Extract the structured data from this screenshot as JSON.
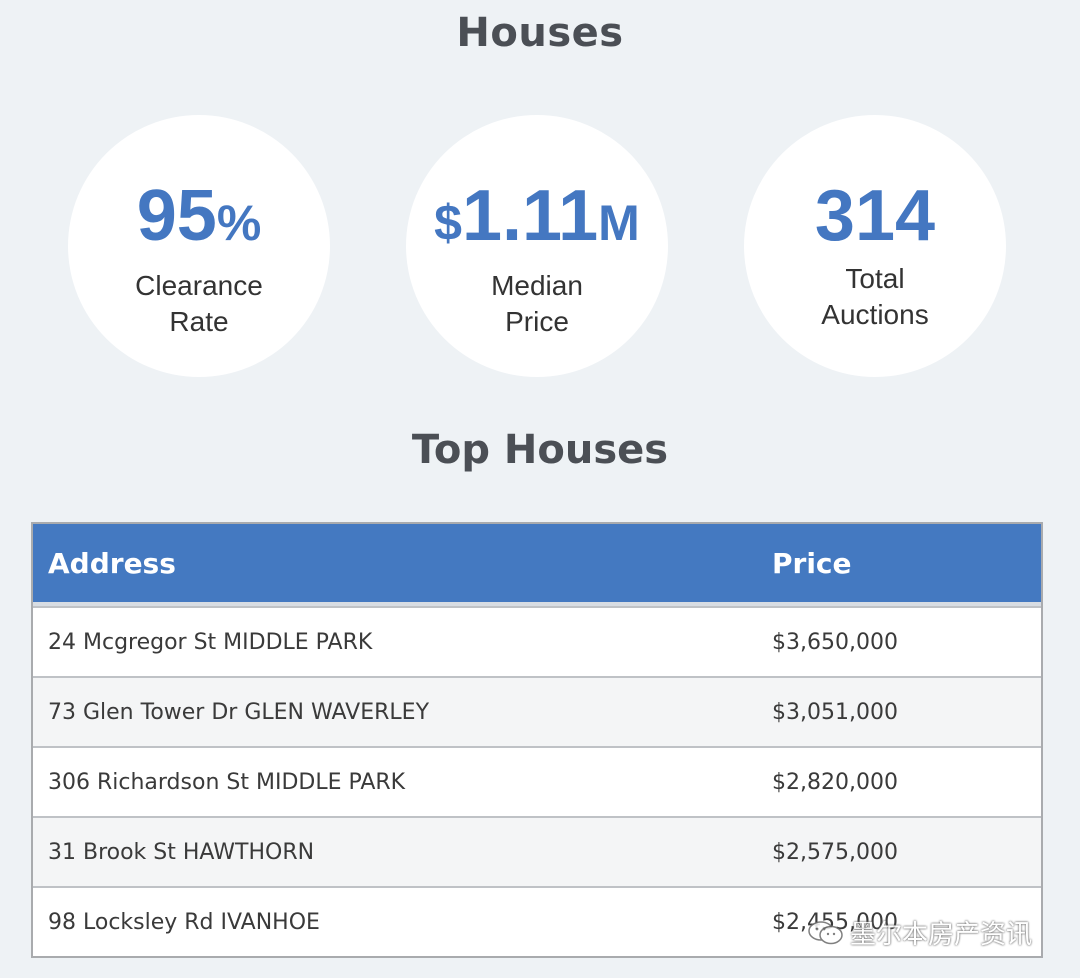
{
  "page": {
    "title": "Houses"
  },
  "stats": [
    {
      "value": "95",
      "unit": "%",
      "label_line1": "Clearance",
      "label_line2": "Rate"
    },
    {
      "value_prefix": "$",
      "value": "1.11",
      "unit": "M",
      "label_line1": "Median",
      "label_line2": "Price"
    },
    {
      "value": "314",
      "label_line1": "Total",
      "label_line2": "Auctions"
    }
  ],
  "top_houses": {
    "title": "Top Houses",
    "columns": {
      "address": "Address",
      "price": "Price"
    },
    "rows": [
      {
        "address": "24 Mcgregor St MIDDLE PARK",
        "price": "$3,650,000"
      },
      {
        "address": "73 Glen Tower Dr GLEN WAVERLEY",
        "price": "$3,051,000"
      },
      {
        "address": "306 Richardson St MIDDLE PARK",
        "price": "$2,820,000"
      },
      {
        "address": "31 Brook St HAWTHORN",
        "price": "$2,575,000"
      },
      {
        "address": "98 Locksley Rd IVANHOE",
        "price": "$2,455,000"
      }
    ]
  },
  "watermark": {
    "icon": "wechat-icon",
    "text": "墨尔本房产资讯"
  },
  "colors": {
    "accent": "#4477c1",
    "header_bg": "#4479c1",
    "page_bg": "#eef2f5"
  }
}
